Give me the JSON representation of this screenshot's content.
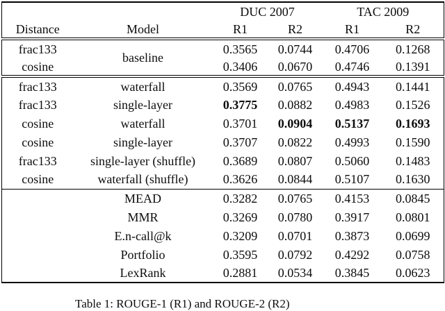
{
  "table": {
    "group_headers": {
      "duc": "DUC 2007",
      "tac": "TAC 2009"
    },
    "column_headers": {
      "distance": "Distance",
      "model": "Model",
      "r1_duc": "R1",
      "r2_duc": "R2",
      "r1_tac": "R1",
      "r2_tac": "R2"
    },
    "rows": [
      {
        "distance": "frac133",
        "model": "baseline",
        "r1_duc": "0.3565",
        "r2_duc": "0.0744",
        "r1_tac": "0.4706",
        "r2_tac": "0.1268"
      },
      {
        "distance": "cosine",
        "r1_duc": "0.3406",
        "r2_duc": "0.0670",
        "r1_tac": "0.4746",
        "r2_tac": "0.1391"
      },
      {
        "distance": "frac133",
        "model": "waterfall",
        "r1_duc": "0.3569",
        "r2_duc": "0.0765",
        "r1_tac": "0.4943",
        "r2_tac": "0.1441"
      },
      {
        "distance": "frac133",
        "model": "single-layer",
        "r1_duc": "0.3775",
        "r2_duc": "0.0882",
        "r1_tac": "0.4983",
        "r2_tac": "0.1526"
      },
      {
        "distance": "cosine",
        "model": "waterfall",
        "r1_duc": "0.3701",
        "r2_duc": "0.0904",
        "r1_tac": "0.5137",
        "r2_tac": "0.1693"
      },
      {
        "distance": "cosine",
        "model": "single-layer",
        "r1_duc": "0.3707",
        "r2_duc": "0.0822",
        "r1_tac": "0.4993",
        "r2_tac": "0.1590"
      },
      {
        "distance": "frac133",
        "model": "single-layer (shuffle)",
        "r1_duc": "0.3689",
        "r2_duc": "0.0807",
        "r1_tac": "0.5060",
        "r2_tac": "0.1483"
      },
      {
        "distance": "cosine",
        "model": "waterfall (shuffle)",
        "r1_duc": "0.3626",
        "r2_duc": "0.0844",
        "r1_tac": "0.5107",
        "r2_tac": "0.1630"
      },
      {
        "distance": "",
        "model": "MEAD",
        "r1_duc": "0.3282",
        "r2_duc": "0.0765",
        "r1_tac": "0.4153",
        "r2_tac": "0.0845"
      },
      {
        "distance": "",
        "model": "MMR",
        "r1_duc": "0.3269",
        "r2_duc": "0.0780",
        "r1_tac": "0.3917",
        "r2_tac": "0.0801"
      },
      {
        "distance": "",
        "model": "E.n-call@k",
        "r1_duc": "0.3209",
        "r2_duc": "0.0701",
        "r1_tac": "0.3873",
        "r2_tac": "0.0699"
      },
      {
        "distance": "",
        "model": "Portfolio",
        "r1_duc": "0.3595",
        "r2_duc": "0.0792",
        "r1_tac": "0.4292",
        "r2_tac": "0.0758"
      },
      {
        "distance": "",
        "model": "LexRank",
        "r1_duc": "0.2881",
        "r2_duc": "0.0534",
        "r1_tac": "0.3845",
        "r2_tac": "0.0623"
      }
    ]
  },
  "caption": "Table 1: ROUGE-1 (R1) and ROUGE-2 (R2)"
}
